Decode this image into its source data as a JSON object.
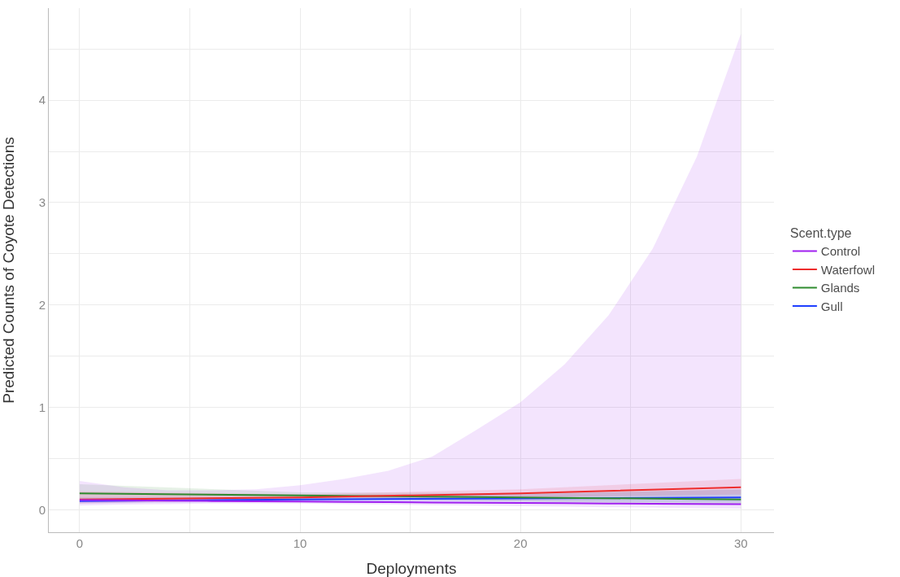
{
  "chart_data": {
    "type": "line",
    "xlabel": "Deployments",
    "ylabel": "Predicted Counts of Coyote Detections",
    "legend_title": "Scent.type",
    "legend": "right",
    "grid": true,
    "marker": "none",
    "line_style": "solid",
    "xlim": [
      -1.4,
      31.5
    ],
    "ylim": [
      -0.22,
      4.9
    ],
    "xticks": [
      0,
      {
        "value": 5,
        "label": null
      },
      10,
      {
        "value": 15,
        "label": null
      },
      20,
      {
        "value": 25,
        "label": null
      },
      30
    ],
    "yticks": [
      0,
      {
        "value": 0.5,
        "label": null
      },
      1,
      {
        "value": 1.5,
        "label": null
      },
      2,
      {
        "value": 2.5,
        "label": null
      },
      3,
      {
        "value": 3.5,
        "label": null
      },
      4,
      {
        "value": 4.5,
        "label": null
      }
    ],
    "series": [
      {
        "name": "Gull",
        "color": "#1f3fff",
        "x": [
          0,
          10,
          20,
          30
        ],
        "values": [
          0.085,
          0.1,
          0.11,
          0.12
        ],
        "lower": [
          0.06,
          0.08,
          0.08,
          0.07
        ],
        "upper": [
          0.12,
          0.12,
          0.15,
          0.2
        ]
      },
      {
        "name": "Glands",
        "color": "#2e8b2e",
        "x": [
          0,
          10,
          20,
          30
        ],
        "values": [
          0.16,
          0.14,
          0.12,
          0.1
        ],
        "lower": [
          0.1,
          0.11,
          0.08,
          0.05
        ],
        "upper": [
          0.25,
          0.17,
          0.16,
          0.2
        ]
      },
      {
        "name": "Waterfowl",
        "color": "#ee2c2c",
        "x": [
          0,
          10,
          20,
          30
        ],
        "values": [
          0.1,
          0.12,
          0.16,
          0.22
        ],
        "lower": [
          0.06,
          0.1,
          0.12,
          0.15
        ],
        "upper": [
          0.18,
          0.15,
          0.2,
          0.3
        ]
      },
      {
        "name": "Control",
        "color": "#a020f0",
        "x": [
          0,
          2,
          4,
          6,
          8,
          10,
          12,
          14,
          16,
          18,
          20,
          22,
          24,
          26,
          28,
          30
        ],
        "values": [
          0.095,
          0.092,
          0.088,
          0.085,
          0.082,
          0.08,
          0.077,
          0.074,
          0.071,
          0.068,
          0.066,
          0.064,
          0.061,
          0.059,
          0.057,
          0.055
        ],
        "lower": [
          0.04,
          0.05,
          0.055,
          0.06,
          0.06,
          0.06,
          0.055,
          0.05,
          0.045,
          0.04,
          0.035,
          0.03,
          0.025,
          0.02,
          0.015,
          0.01
        ],
        "upper": [
          0.28,
          0.22,
          0.19,
          0.19,
          0.2,
          0.24,
          0.3,
          0.38,
          0.52,
          0.78,
          1.05,
          1.42,
          1.9,
          2.55,
          3.45,
          4.65
        ]
      }
    ]
  }
}
